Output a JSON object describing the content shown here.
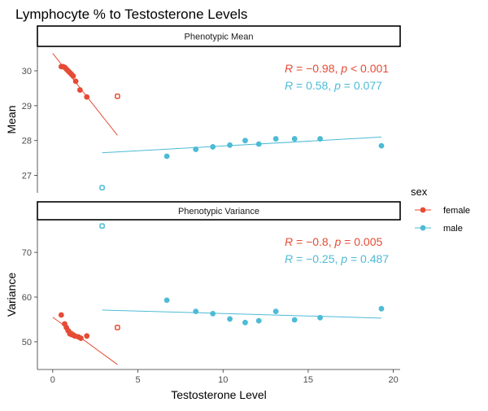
{
  "chart_data": {
    "type": "scatter",
    "title": "Lymphocyte % to Testosterone Levels",
    "xlabel": "Testosterone Level",
    "xlim": [
      -0.9,
      20.4
    ],
    "xticks": [
      0,
      5,
      10,
      15,
      20
    ],
    "legend": {
      "title": "sex",
      "position": "right",
      "entries": [
        {
          "label": "female",
          "color": "#E64B35"
        },
        {
          "label": "male",
          "color": "#4DBBD5"
        }
      ]
    },
    "panels": [
      {
        "strip": "Phenotypic Mean",
        "ylabel": "Mean",
        "ylim": [
          26.5,
          30.7
        ],
        "yticks": [
          27,
          28,
          29,
          30
        ],
        "stats": [
          {
            "sex": "female",
            "r": "−0.98",
            "p_op": "<",
            "p": "0.001"
          },
          {
            "sex": "male",
            "r": "0.58",
            "p_op": "=",
            "p": "0.077"
          }
        ],
        "series": [
          {
            "name": "female",
            "points": [
              [
                0.5,
                30.12
              ],
              [
                0.6,
                30.12
              ],
              [
                0.7,
                30.1
              ],
              [
                0.8,
                30.05
              ],
              [
                0.9,
                30.0
              ],
              [
                1.0,
                29.95
              ],
              [
                1.1,
                29.9
              ],
              [
                1.2,
                29.85
              ],
              [
                1.35,
                29.7
              ],
              [
                1.6,
                29.45
              ],
              [
                2.0,
                29.25
              ]
            ],
            "outliers": [
              [
                3.8,
                29.27
              ]
            ],
            "fit": [
              [
                0.0,
                30.5
              ],
              [
                3.8,
                28.15
              ]
            ]
          },
          {
            "name": "male",
            "points": [
              [
                6.7,
                27.55
              ],
              [
                8.4,
                27.75
              ],
              [
                9.4,
                27.82
              ],
              [
                10.4,
                27.87
              ],
              [
                11.3,
                28.0
              ],
              [
                12.1,
                27.9
              ],
              [
                13.1,
                28.05
              ],
              [
                14.2,
                28.05
              ],
              [
                15.7,
                28.05
              ],
              [
                19.3,
                27.85
              ]
            ],
            "outliers": [
              [
                2.9,
                26.65
              ]
            ],
            "fit": [
              [
                2.9,
                27.65
              ],
              [
                19.3,
                28.1
              ]
            ]
          }
        ]
      },
      {
        "strip": "Phenotypic Variance",
        "ylabel": "Variance",
        "ylim": [
          43.8,
          77.3
        ],
        "yticks": [
          50,
          60,
          70
        ],
        "stats": [
          {
            "sex": "female",
            "r": "−0.8",
            "p_op": "=",
            "p": "0.005"
          },
          {
            "sex": "male",
            "r": "−0.25",
            "p_op": "=",
            "p": "0.487"
          }
        ],
        "series": [
          {
            "name": "female",
            "points": [
              [
                0.5,
                56.0
              ],
              [
                0.7,
                54.0
              ],
              [
                0.8,
                53.2
              ],
              [
                0.9,
                52.5
              ],
              [
                1.0,
                51.8
              ],
              [
                1.1,
                51.6
              ],
              [
                1.2,
                51.5
              ],
              [
                1.3,
                51.3
              ],
              [
                1.5,
                51.1
              ],
              [
                1.65,
                50.8
              ],
              [
                2.0,
                51.3
              ]
            ],
            "outliers": [
              [
                3.8,
                53.2
              ]
            ],
            "fit": [
              [
                0.0,
                55.5
              ],
              [
                3.8,
                44.9
              ]
            ]
          },
          {
            "name": "male",
            "points": [
              [
                6.7,
                59.3
              ],
              [
                8.4,
                56.8
              ],
              [
                9.4,
                56.3
              ],
              [
                10.4,
                55.1
              ],
              [
                11.3,
                54.3
              ],
              [
                12.1,
                54.7
              ],
              [
                13.1,
                56.8
              ],
              [
                14.2,
                54.9
              ],
              [
                15.7,
                55.4
              ],
              [
                19.3,
                57.4
              ]
            ],
            "outliers": [
              [
                2.9,
                75.9
              ]
            ],
            "fit": [
              [
                2.9,
                57.1
              ],
              [
                19.3,
                55.3
              ]
            ]
          }
        ]
      }
    ]
  }
}
